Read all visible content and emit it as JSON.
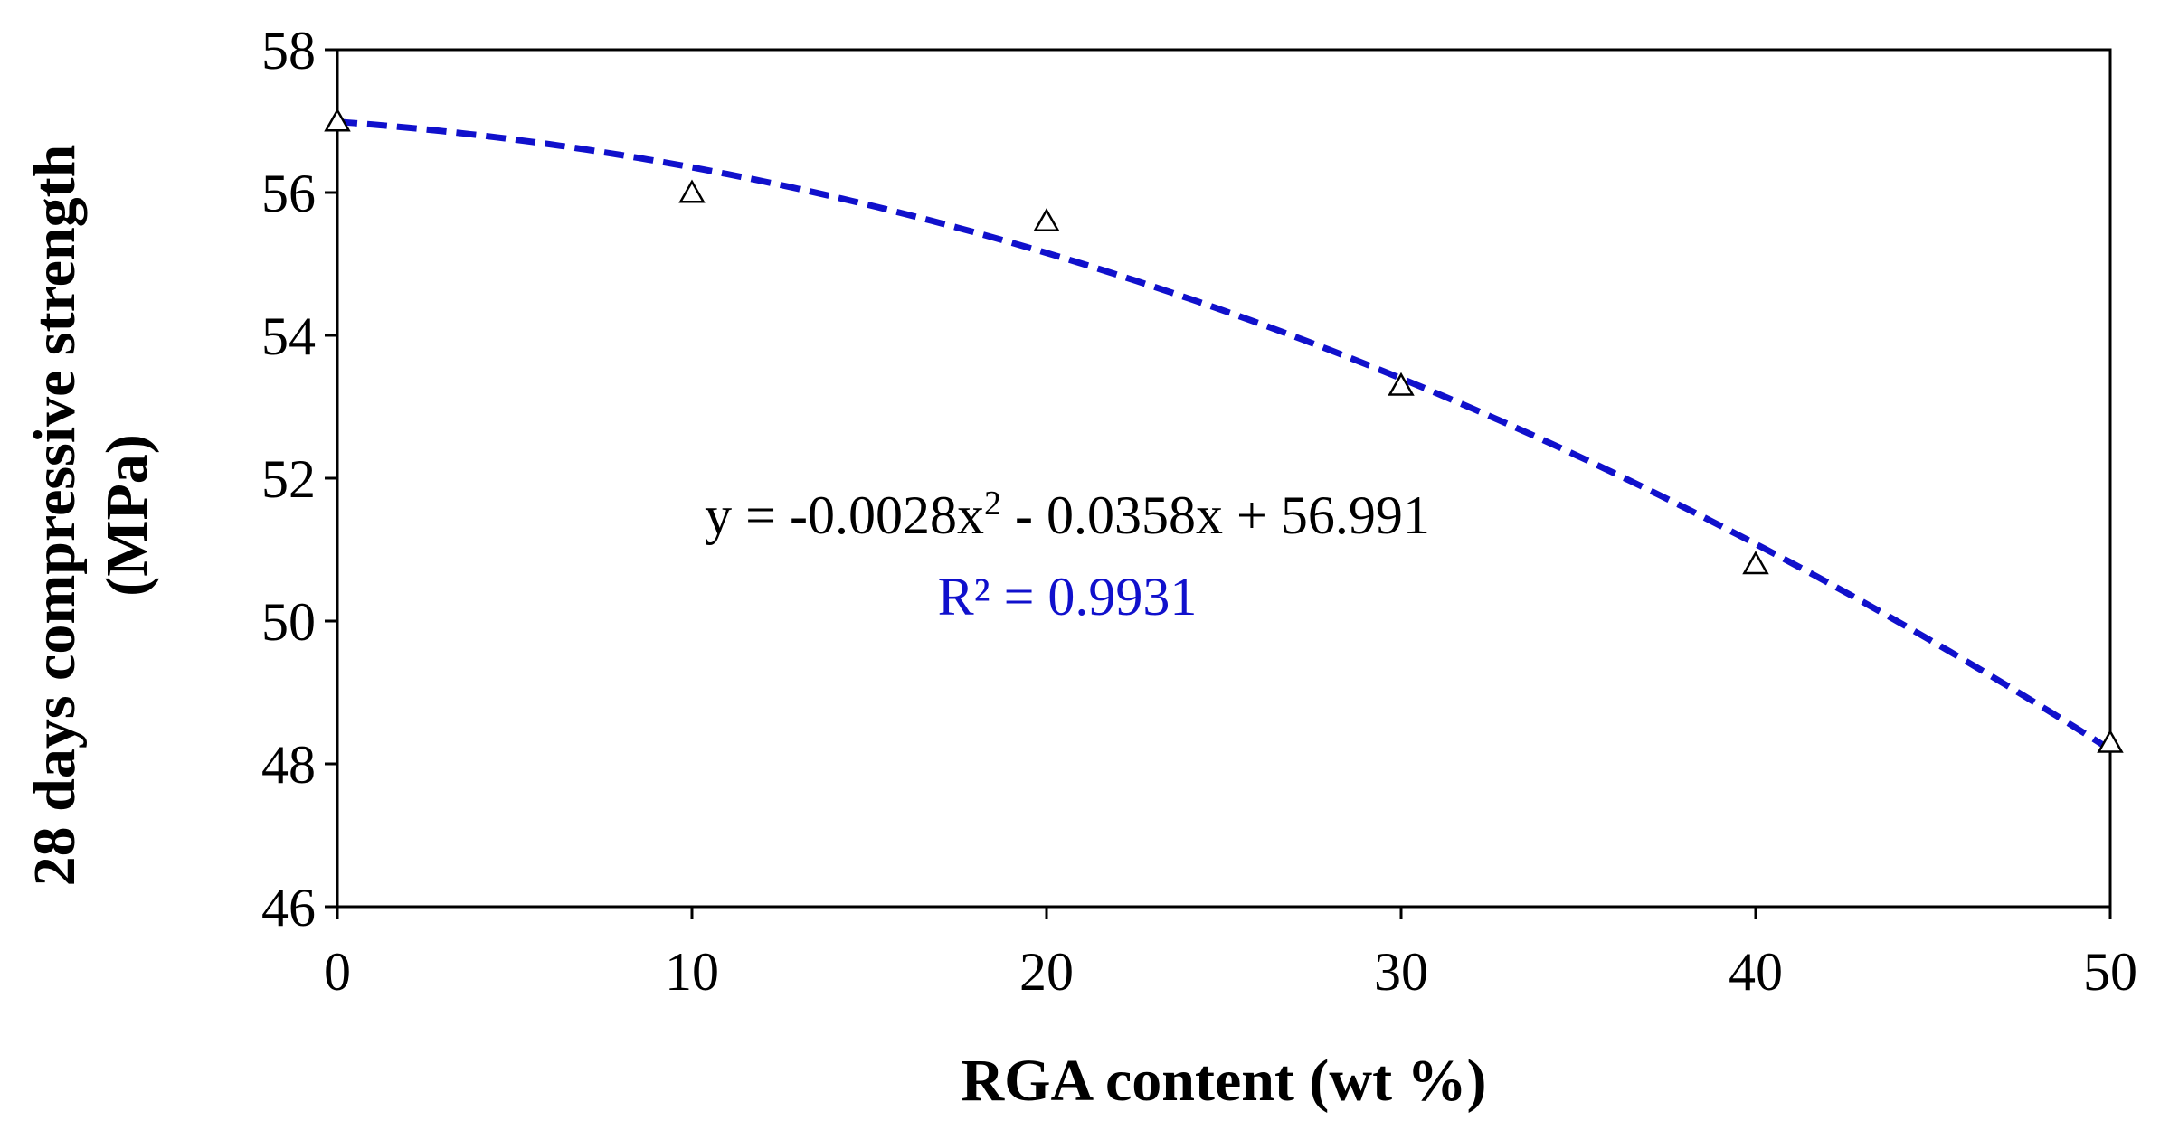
{
  "chart_data": {
    "type": "scatter",
    "title": "",
    "xlabel": "RGA content (wt %)",
    "ylabel_line1": "28 days compressive strength",
    "ylabel_line2": "(MPa)",
    "xlim": [
      0,
      50
    ],
    "ylim": [
      46,
      58
    ],
    "xticks": [
      0,
      10,
      20,
      30,
      40,
      50
    ],
    "yticks": [
      46,
      48,
      50,
      52,
      54,
      56,
      58
    ],
    "grid": false,
    "series": [
      {
        "name": "28 days compressive strength",
        "marker": "triangle",
        "x": [
          0,
          10,
          20,
          30,
          40,
          50
        ],
        "y": [
          57.0,
          56.0,
          55.6,
          53.3,
          50.8,
          48.3
        ]
      }
    ],
    "trendline": {
      "type": "polynomial",
      "order": 2,
      "coefficients": {
        "a": -0.0028,
        "b": -0.0358,
        "c": 56.991
      },
      "style": "dashed",
      "color": "#1010CC"
    },
    "annotations": {
      "equation": {
        "prefix": "y = -0.0028x",
        "superscript": "2",
        "suffix": " - 0.0358x + 56.991",
        "color": "#000000"
      },
      "r_squared": {
        "text": "R² = 0.9931",
        "color": "#1010CC"
      }
    }
  }
}
